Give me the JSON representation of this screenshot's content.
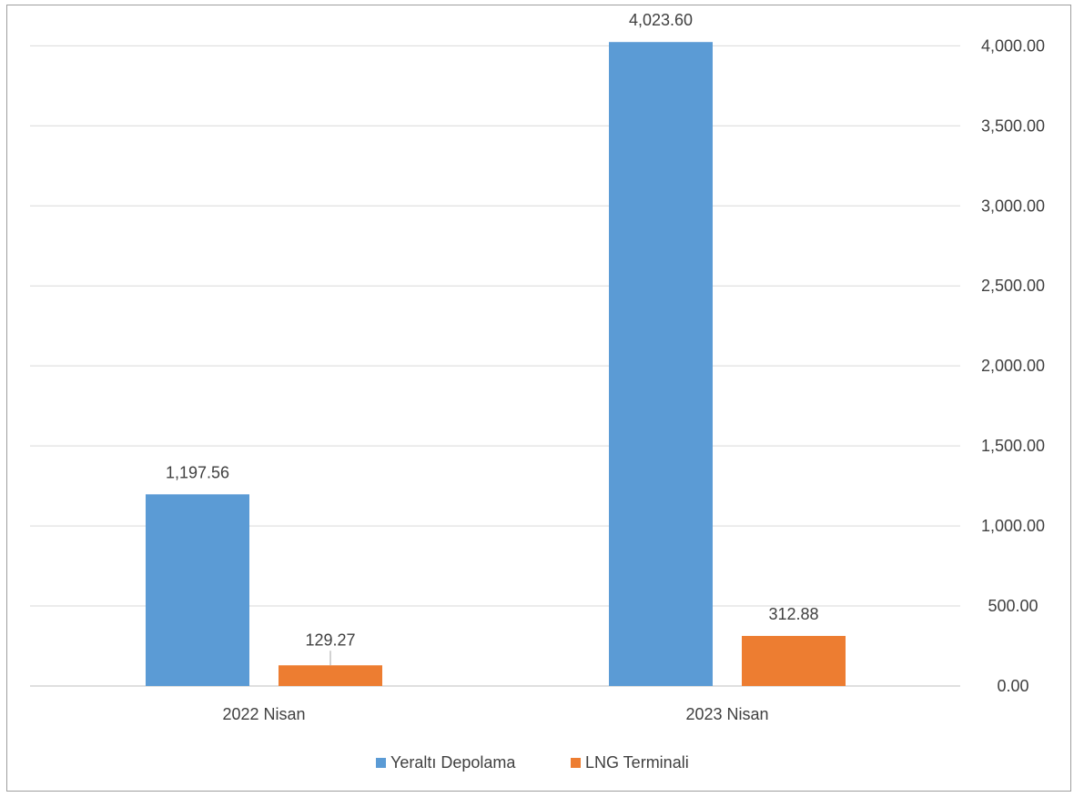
{
  "chart_data": {
    "type": "bar",
    "categories": [
      "2022 Nisan",
      "2023 Nisan"
    ],
    "series": [
      {
        "name": "Yeraltı Depolama",
        "values": [
          1197.56,
          4023.6
        ],
        "labels": [
          "1,197.56",
          "4,023.60"
        ],
        "color": "#5B9BD5"
      },
      {
        "name": "LNG Terminali",
        "values": [
          129.27,
          312.88
        ],
        "labels": [
          "129.27",
          "312.88"
        ],
        "color": "#ED7D31"
      }
    ],
    "y_ticks": [
      {
        "value": 0,
        "label": "0.00"
      },
      {
        "value": 500,
        "label": "500.00"
      },
      {
        "value": 1000,
        "label": "1,000.00"
      },
      {
        "value": 1500,
        "label": "1,500.00"
      },
      {
        "value": 2000,
        "label": "2,000.00"
      },
      {
        "value": 2500,
        "label": "2,500.00"
      },
      {
        "value": 3000,
        "label": "3,000.00"
      },
      {
        "value": 3500,
        "label": "3,500.00"
      },
      {
        "value": 4000,
        "label": "4,000.00"
      }
    ],
    "ylim": [
      0,
      4000
    ],
    "y_axis_position": "right",
    "grid": true,
    "legend_position": "bottom",
    "title": "",
    "xlabel": "",
    "ylabel": ""
  }
}
